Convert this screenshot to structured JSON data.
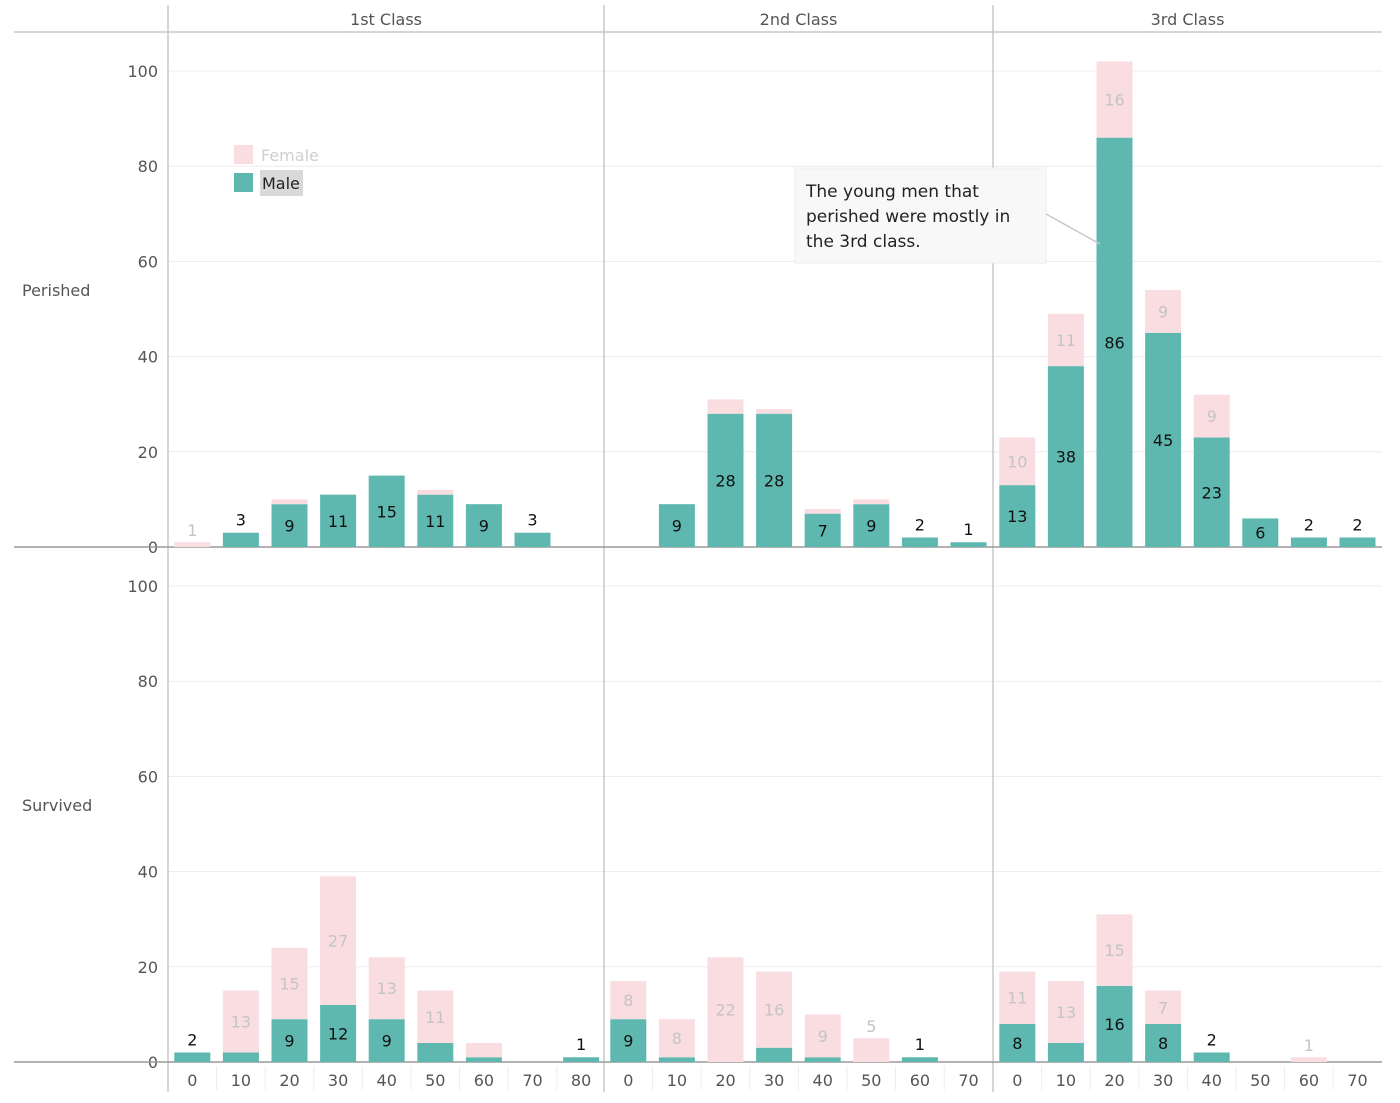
{
  "chart_data": {
    "type": "bar",
    "stacked": true,
    "columns": [
      "1st Class",
      "2nd Class",
      "3rd Class"
    ],
    "rows": [
      "Perished",
      "Survived"
    ],
    "x_categories": {
      "1st Class": [
        "0",
        "10",
        "20",
        "30",
        "40",
        "50",
        "60",
        "70",
        "80"
      ],
      "2nd Class": [
        "0",
        "10",
        "20",
        "30",
        "40",
        "50",
        "60",
        "70"
      ],
      "3rd Class": [
        "0",
        "10",
        "20",
        "30",
        "40",
        "50",
        "60",
        "70"
      ]
    },
    "ylim": [
      0,
      108
    ],
    "yticks": [
      "0",
      "20",
      "40",
      "60",
      "80",
      "100"
    ],
    "legend": {
      "position": "top-left",
      "items": [
        "Female",
        "Male"
      ]
    },
    "colors": {
      "Female": "#f9dde1",
      "Male": "#5fb8b0"
    },
    "annotation": {
      "lines": [
        "The young men that",
        "perished were mostly in",
        "the 3rd class."
      ]
    },
    "panels": [
      {
        "row": "Perished",
        "column": "1st Class",
        "male": [
          0,
          3,
          9,
          11,
          15,
          11,
          9,
          3,
          0
        ],
        "female": [
          1,
          0,
          1,
          0,
          0,
          1,
          0,
          0,
          0
        ],
        "male_labels": [
          "",
          "3",
          "9",
          "11",
          "15",
          "11",
          "9",
          "3",
          ""
        ],
        "female_labels": [
          "1",
          "",
          "",
          "",
          "",
          "",
          "",
          "",
          ""
        ]
      },
      {
        "row": "Perished",
        "column": "2nd Class",
        "male": [
          0,
          9,
          28,
          28,
          7,
          9,
          2,
          1
        ],
        "female": [
          0,
          0,
          3,
          1,
          1,
          1,
          0,
          0
        ],
        "male_labels": [
          "",
          "9",
          "28",
          "28",
          "7",
          "9",
          "2",
          "1"
        ],
        "female_labels": [
          "",
          "",
          "",
          "",
          "",
          "",
          "",
          ""
        ]
      },
      {
        "row": "Perished",
        "column": "3rd Class",
        "male": [
          13,
          38,
          86,
          45,
          23,
          6,
          2,
          2
        ],
        "female": [
          10,
          11,
          16,
          9,
          9,
          0,
          0,
          0
        ],
        "male_labels": [
          "13",
          "38",
          "86",
          "45",
          "23",
          "6",
          "2",
          "2"
        ],
        "female_labels": [
          "10",
          "11",
          "16",
          "9",
          "9",
          "",
          "",
          ""
        ]
      },
      {
        "row": "Survived",
        "column": "1st Class",
        "male": [
          2,
          2,
          9,
          12,
          9,
          4,
          1,
          0,
          1
        ],
        "female": [
          0,
          13,
          15,
          27,
          13,
          11,
          3,
          0,
          0
        ],
        "male_labels": [
          "2",
          "",
          "9",
          "12",
          "9",
          "",
          "",
          "",
          "1"
        ],
        "female_labels": [
          "",
          "13",
          "15",
          "27",
          "13",
          "11",
          "",
          "",
          ""
        ]
      },
      {
        "row": "Survived",
        "column": "2nd Class",
        "male": [
          9,
          1,
          0,
          3,
          1,
          0,
          1,
          0
        ],
        "female": [
          8,
          8,
          22,
          16,
          9,
          5,
          0,
          0
        ],
        "male_labels": [
          "9",
          "",
          "",
          "",
          "",
          "",
          "1",
          ""
        ],
        "female_labels": [
          "8",
          "8",
          "22",
          "16",
          "9",
          "5",
          "",
          ""
        ]
      },
      {
        "row": "Survived",
        "column": "3rd Class",
        "male": [
          8,
          4,
          16,
          8,
          2,
          0,
          0,
          0
        ],
        "female": [
          11,
          13,
          15,
          7,
          0,
          0,
          1,
          0
        ],
        "male_labels": [
          "8",
          "",
          "16",
          "8",
          "2",
          "",
          "",
          ""
        ],
        "female_labels": [
          "11",
          "13",
          "15",
          "7",
          "",
          "",
          "1",
          ""
        ]
      }
    ]
  }
}
